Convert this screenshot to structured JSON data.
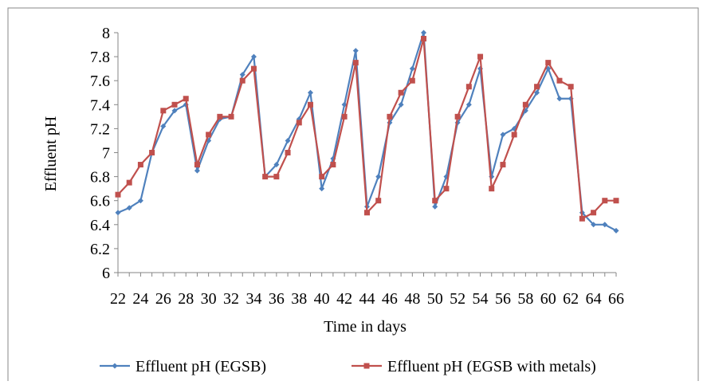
{
  "chart_data": {
    "type": "line",
    "title": "",
    "xlabel": "Time in days",
    "ylabel": "Effluent pH",
    "ylim": [
      6,
      8
    ],
    "yticks": [
      "6",
      "6.2",
      "6.4",
      "6.6",
      "6.8",
      "7",
      "7.2",
      "7.4",
      "7.6",
      "7.8",
      "8"
    ],
    "xlim": [
      22,
      66
    ],
    "xticks": [
      "22",
      "24",
      "26",
      "28",
      "30",
      "32",
      "34",
      "36",
      "38",
      "40",
      "42",
      "44",
      "46",
      "48",
      "50",
      "52",
      "54",
      "56",
      "58",
      "60",
      "62",
      "64",
      "66"
    ],
    "grid": false,
    "legend_position": "bottom",
    "x": [
      22,
      23,
      24,
      25,
      26,
      27,
      28,
      29,
      30,
      31,
      32,
      33,
      34,
      35,
      36,
      37,
      38,
      39,
      40,
      41,
      42,
      43,
      44,
      45,
      46,
      47,
      48,
      49,
      50,
      51,
      52,
      53,
      54,
      55,
      56,
      57,
      58,
      59,
      60,
      61,
      62,
      63,
      64,
      65,
      66
    ],
    "series": [
      {
        "name": "Effluent pH (EGSB)",
        "color": "#4f81bd",
        "marker": "diamond",
        "values": [
          6.5,
          6.54,
          6.6,
          7.0,
          7.22,
          7.35,
          7.4,
          6.85,
          7.1,
          7.28,
          7.3,
          7.65,
          7.8,
          6.8,
          6.9,
          7.1,
          7.28,
          7.5,
          6.7,
          6.95,
          7.4,
          7.85,
          6.55,
          6.8,
          7.25,
          7.4,
          7.7,
          8.0,
          6.55,
          6.8,
          7.25,
          7.4,
          7.7,
          6.8,
          7.15,
          7.2,
          7.35,
          7.5,
          7.7,
          7.45,
          7.45,
          6.5,
          6.4,
          6.4,
          6.35
        ]
      },
      {
        "name": "Effluent pH (EGSB with metals)",
        "color": "#c0504d",
        "marker": "square",
        "values": [
          6.65,
          6.75,
          6.9,
          7.0,
          7.35,
          7.4,
          7.45,
          6.9,
          7.15,
          7.3,
          7.3,
          7.6,
          7.7,
          6.8,
          6.8,
          7.0,
          7.25,
          7.4,
          6.8,
          6.9,
          7.3,
          7.75,
          6.5,
          6.6,
          7.3,
          7.5,
          7.6,
          7.95,
          6.6,
          6.7,
          7.3,
          7.55,
          7.8,
          6.7,
          6.9,
          7.15,
          7.4,
          7.55,
          7.75,
          7.6,
          7.55,
          6.45,
          6.5,
          6.6,
          6.6
        ]
      }
    ]
  }
}
